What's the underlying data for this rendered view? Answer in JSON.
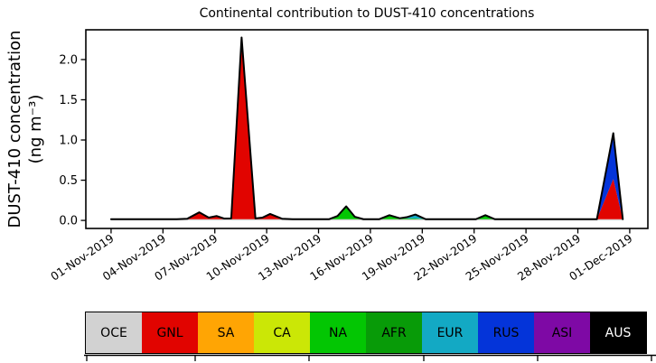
{
  "chart_data": {
    "type": "area",
    "title": "Continental contribution to DUST-410 concentrations",
    "ylabel_line1": "DUST-410 concentration",
    "ylabel_line2": "(ng m⁻³)",
    "legend_position": "bottom-strip",
    "grid": false,
    "ylim": [
      -0.1,
      2.37
    ],
    "x_range_days": [
      -0.46,
      32.05
    ],
    "y_ticks": [
      0.0,
      0.5,
      1.0,
      1.5,
      2.0
    ],
    "y_tick_labels": [
      "0.0",
      "0.5",
      "1.0",
      "1.5",
      "2.0"
    ],
    "x_tick_days": [
      1,
      4,
      7,
      10,
      13,
      16,
      19,
      22,
      25,
      28,
      31
    ],
    "x_tick_labels": [
      "01-Nov-2019",
      "04-Nov-2019",
      "07-Nov-2019",
      "10-Nov-2019",
      "13-Nov-2019",
      "16-Nov-2019",
      "19-Nov-2019",
      "22-Nov-2019",
      "25-Nov-2019",
      "28-Nov-2019",
      "01-Dec-2019"
    ],
    "edge_line_color": "#000000",
    "series": [
      {
        "name": "OCE",
        "color": "#d2d2d2",
        "text_color": "#000000"
      },
      {
        "name": "GNL",
        "color": "#e10400",
        "text_color": "#000000"
      },
      {
        "name": "SA",
        "color": "#ffa504",
        "text_color": "#000000"
      },
      {
        "name": "CA",
        "color": "#cbe706",
        "text_color": "#000000"
      },
      {
        "name": "NA",
        "color": "#03c603",
        "text_color": "#000000"
      },
      {
        "name": "AFR",
        "color": "#089b08",
        "text_color": "#000000"
      },
      {
        "name": "EUR",
        "color": "#13a9c4",
        "text_color": "#000000"
      },
      {
        "name": "RUS",
        "color": "#0434d9",
        "text_color": "#000000"
      },
      {
        "name": "ASI",
        "color": "#7e09a5",
        "text_color": "#000000"
      },
      {
        "name": "AUS",
        "color": "#000000",
        "text_color": "#ffffff"
      }
    ],
    "samples": [
      {
        "d": 1.0,
        "OCE": 0.015
      },
      {
        "d": 4.8,
        "OCE": 0.015
      },
      {
        "d": 5.4,
        "OCE": 0.015,
        "GNL": 0.005
      },
      {
        "d": 6.1,
        "OCE": 0.015,
        "GNL": 0.085
      },
      {
        "d": 6.65,
        "OCE": 0.015,
        "GNL": 0.02
      },
      {
        "d": 7.1,
        "OCE": 0.015,
        "GNL": 0.04
      },
      {
        "d": 7.55,
        "OCE": 0.015,
        "GNL": 0.008
      },
      {
        "d": 7.95,
        "OCE": 0.015,
        "GNL": 0.01
      },
      {
        "d": 8.55,
        "OCE": 0.015,
        "GNL": 2.26
      },
      {
        "d": 9.35,
        "OCE": 0.015,
        "GNL": 0.01
      },
      {
        "d": 9.75,
        "OCE": 0.015,
        "GNL": 0.02
      },
      {
        "d": 10.2,
        "OCE": 0.015,
        "GNL": 0.065
      },
      {
        "d": 10.9,
        "OCE": 0.015,
        "GNL": 0.005
      },
      {
        "d": 11.5,
        "OCE": 0.015
      },
      {
        "d": 13.6,
        "OCE": 0.015
      },
      {
        "d": 14.1,
        "OCE": 0.015,
        "NA": 0.04
      },
      {
        "d": 14.6,
        "OCE": 0.015,
        "NA": 0.16
      },
      {
        "d": 15.1,
        "OCE": 0.015,
        "NA": 0.03
      },
      {
        "d": 15.6,
        "OCE": 0.015
      },
      {
        "d": 16.5,
        "OCE": 0.015
      },
      {
        "d": 17.1,
        "OCE": 0.015,
        "NA": 0.05
      },
      {
        "d": 17.7,
        "OCE": 0.015,
        "NA": 0.012
      },
      {
        "d": 18.1,
        "OCE": 0.015,
        "NA": 0.01,
        "EUR": 0.015
      },
      {
        "d": 18.6,
        "OCE": 0.015,
        "NA": 0.008,
        "EUR": 0.05
      },
      {
        "d": 19.2,
        "OCE": 0.015
      },
      {
        "d": 20.0,
        "OCE": 0.015
      },
      {
        "d": 22.1,
        "OCE": 0.015
      },
      {
        "d": 22.65,
        "OCE": 0.015,
        "NA": 0.05
      },
      {
        "d": 23.2,
        "OCE": 0.015
      },
      {
        "d": 25.0,
        "OCE": 0.015
      },
      {
        "d": 28.5,
        "OCE": 0.015
      },
      {
        "d": 29.1,
        "OCE": 0.015
      },
      {
        "d": 30.05,
        "OCE": 0.015,
        "GNL": 0.5,
        "RUS": 0.57
      },
      {
        "d": 30.6,
        "OCE": 0.015
      }
    ]
  }
}
